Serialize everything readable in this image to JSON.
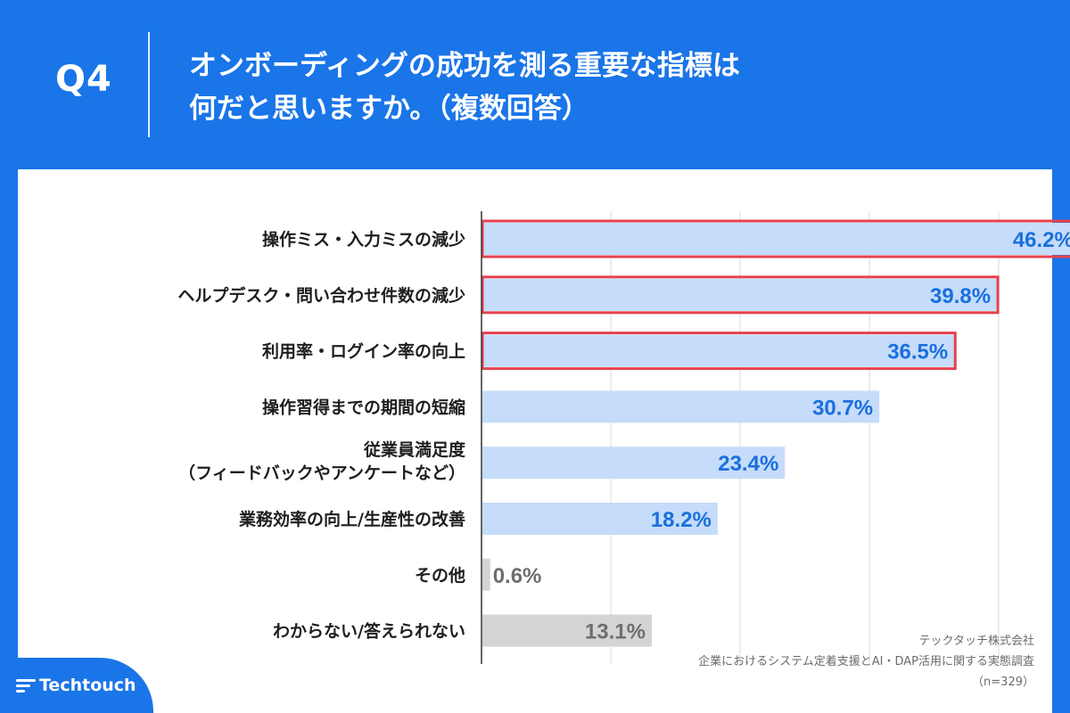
{
  "header": {
    "question_label": "Q4",
    "title_line1": "オンボーディングの成功を測る重要な指標は",
    "title_line2": "何だと思いますか。（複数回答）"
  },
  "chart_data": {
    "type": "bar",
    "orientation": "horizontal",
    "title": "オンボーディングの成功を測る重要な指標は何だと思いますか。（複数回答）",
    "unit": "%",
    "xlim": [
      0,
      50
    ],
    "categories": [
      [
        "操作ミス・入力ミスの減少"
      ],
      [
        "ヘルプデスク・問い合わせ件数の減少"
      ],
      [
        "利用率・ログイン率の向上"
      ],
      [
        "操作習得までの期間の短縮"
      ],
      [
        "従業員満足度",
        "（フィードバックやアンケートなど）"
      ],
      [
        "業務効率の向上/生産性の改善"
      ],
      [
        "その他"
      ],
      [
        "わからない/答えられない"
      ]
    ],
    "values": [
      46.2,
      39.8,
      36.5,
      30.7,
      23.4,
      18.2,
      0.6,
      13.1
    ],
    "labels": [
      "46.2%",
      "39.8%",
      "36.5%",
      "30.7%",
      "23.4%",
      "18.2%",
      "0.6%",
      "13.1%"
    ],
    "highlighted": [
      true,
      true,
      true,
      false,
      false,
      false,
      false,
      false
    ],
    "gray": [
      false,
      false,
      false,
      false,
      false,
      false,
      true,
      true
    ],
    "colors": {
      "bar": "#c5dcfa",
      "bar_gray": "#d4d4d4",
      "label": "#1a6fde",
      "label_gray": "#6e6e6e",
      "highlight": "#e5424d",
      "grid": "#d9d9d9",
      "axis": "#333333",
      "category_text": "#1e1e1e"
    }
  },
  "footer": {
    "brand": "Techtouch",
    "source_line1": "テックタッチ株式会社",
    "source_line2": "企業におけるシステム定着支援とAI・DAP活用に関する実態調査",
    "source_line3": "（n=329）"
  }
}
